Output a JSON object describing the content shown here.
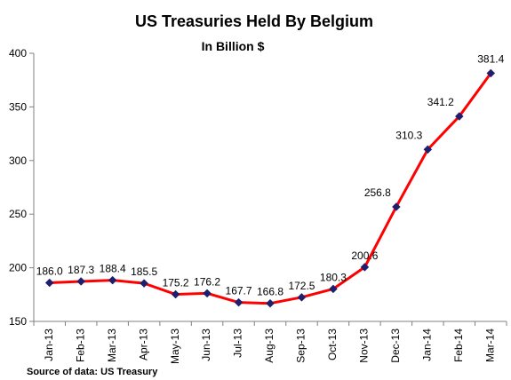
{
  "chart_data": {
    "type": "line",
    "title": "US Treasuries Held By  Belgium",
    "subtitle": "In Billion $",
    "xlabel": "",
    "ylabel": "",
    "source": "Source of data: US Treasury",
    "categories": [
      "Jan-13",
      "Feb-13",
      "Mar-13",
      "Apr-13",
      "May-13",
      "Jun-13",
      "Jul-13",
      "Aug-13",
      "Sep-13",
      "Oct-13",
      "Nov-13",
      "Dec-13",
      "Jan-14",
      "Feb-14",
      "Mar-14"
    ],
    "series": [
      {
        "values": [
          186.0,
          187.3,
          188.4,
          185.5,
          175.2,
          176.2,
          167.7,
          166.8,
          172.5,
          180.3,
          200.6,
          256.8,
          310.3,
          341.2,
          381.4
        ],
        "labels": [
          "186.0",
          "187.3",
          "188.4",
          "185.5",
          "175.2",
          "176.2",
          "167.7",
          "166.8",
          "172.5",
          "180.3",
          "200.6",
          "256.8",
          "310.3",
          "341.2",
          "381.4"
        ],
        "line_color": "#ff0000",
        "marker_color": "#1f1f6e"
      }
    ],
    "ylim": [
      150,
      400
    ],
    "yticks": [
      150,
      200,
      250,
      300,
      350,
      400
    ],
    "grid": false,
    "legend": "none"
  }
}
